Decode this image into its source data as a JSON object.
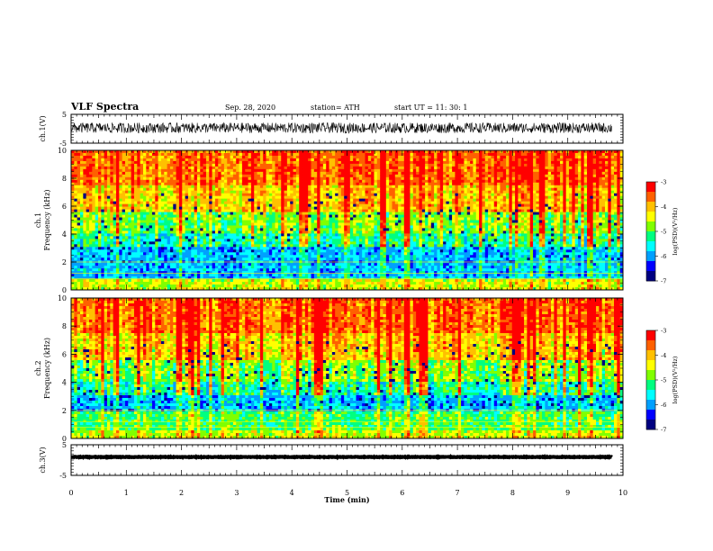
{
  "header": {
    "title": "VLF Spectra",
    "date": "Sep. 28, 2020",
    "station": "station= ATH",
    "start": "start  UT =   11: 30: 1"
  },
  "colors": {
    "spectrum": [
      "#000080",
      "#0000ff",
      "#00a0ff",
      "#00ffff",
      "#00ff80",
      "#80ff00",
      "#ffff00",
      "#ffc000",
      "#ff6000",
      "#ff0000",
      "#ffffff"
    ],
    "waveform": "#000000",
    "axis": "#000000"
  },
  "chart_data": [
    {
      "type": "line",
      "name": "ch1-waveform",
      "ylabel": "ch.1(V)",
      "ylim": [
        -5,
        5
      ],
      "yticks": [
        "5",
        "-5"
      ],
      "xlim": [
        0,
        10
      ],
      "description_values": {
        "mean": 0.3,
        "amplitude": 1.8
      }
    },
    {
      "type": "heatmap",
      "ylabel": "ch.1\nFrequency (kHz)",
      "ylim": [
        0,
        10
      ],
      "yticks": [
        "0",
        "2",
        "4",
        "6",
        "8",
        "10"
      ],
      "xlim": [
        0,
        10
      ],
      "colorbar": {
        "label": "log(PSD)(V²/Hz)",
        "ticks": [
          "-3",
          "-4",
          "-5",
          "-6",
          "-7"
        ],
        "range": [
          -7,
          -3
        ]
      }
    },
    {
      "type": "heatmap",
      "ylabel": "ch.2\nFrequency (kHz)",
      "ylim": [
        0,
        10
      ],
      "yticks": [
        "0",
        "2",
        "4",
        "6",
        "8",
        "10"
      ],
      "xlim": [
        0,
        10
      ],
      "colorbar": {
        "label": "log(PSD)(V²/Hz)",
        "ticks": [
          "-3",
          "-4",
          "-5",
          "-6",
          "-7"
        ],
        "range": [
          -7,
          -3
        ]
      }
    },
    {
      "type": "line",
      "name": "ch3-waveform",
      "ylabel": "ch.3(V)",
      "ylim": [
        -5,
        5
      ],
      "yticks": [
        "5",
        "-5"
      ],
      "xlim": [
        0,
        10
      ],
      "xlabel": "Time  (min)",
      "xticks": [
        "0",
        "1",
        "2",
        "3",
        "4",
        "5",
        "6",
        "7",
        "8",
        "9",
        "10"
      ],
      "description_values": {
        "mean": 1.0,
        "amplitude": 0.1
      }
    }
  ]
}
